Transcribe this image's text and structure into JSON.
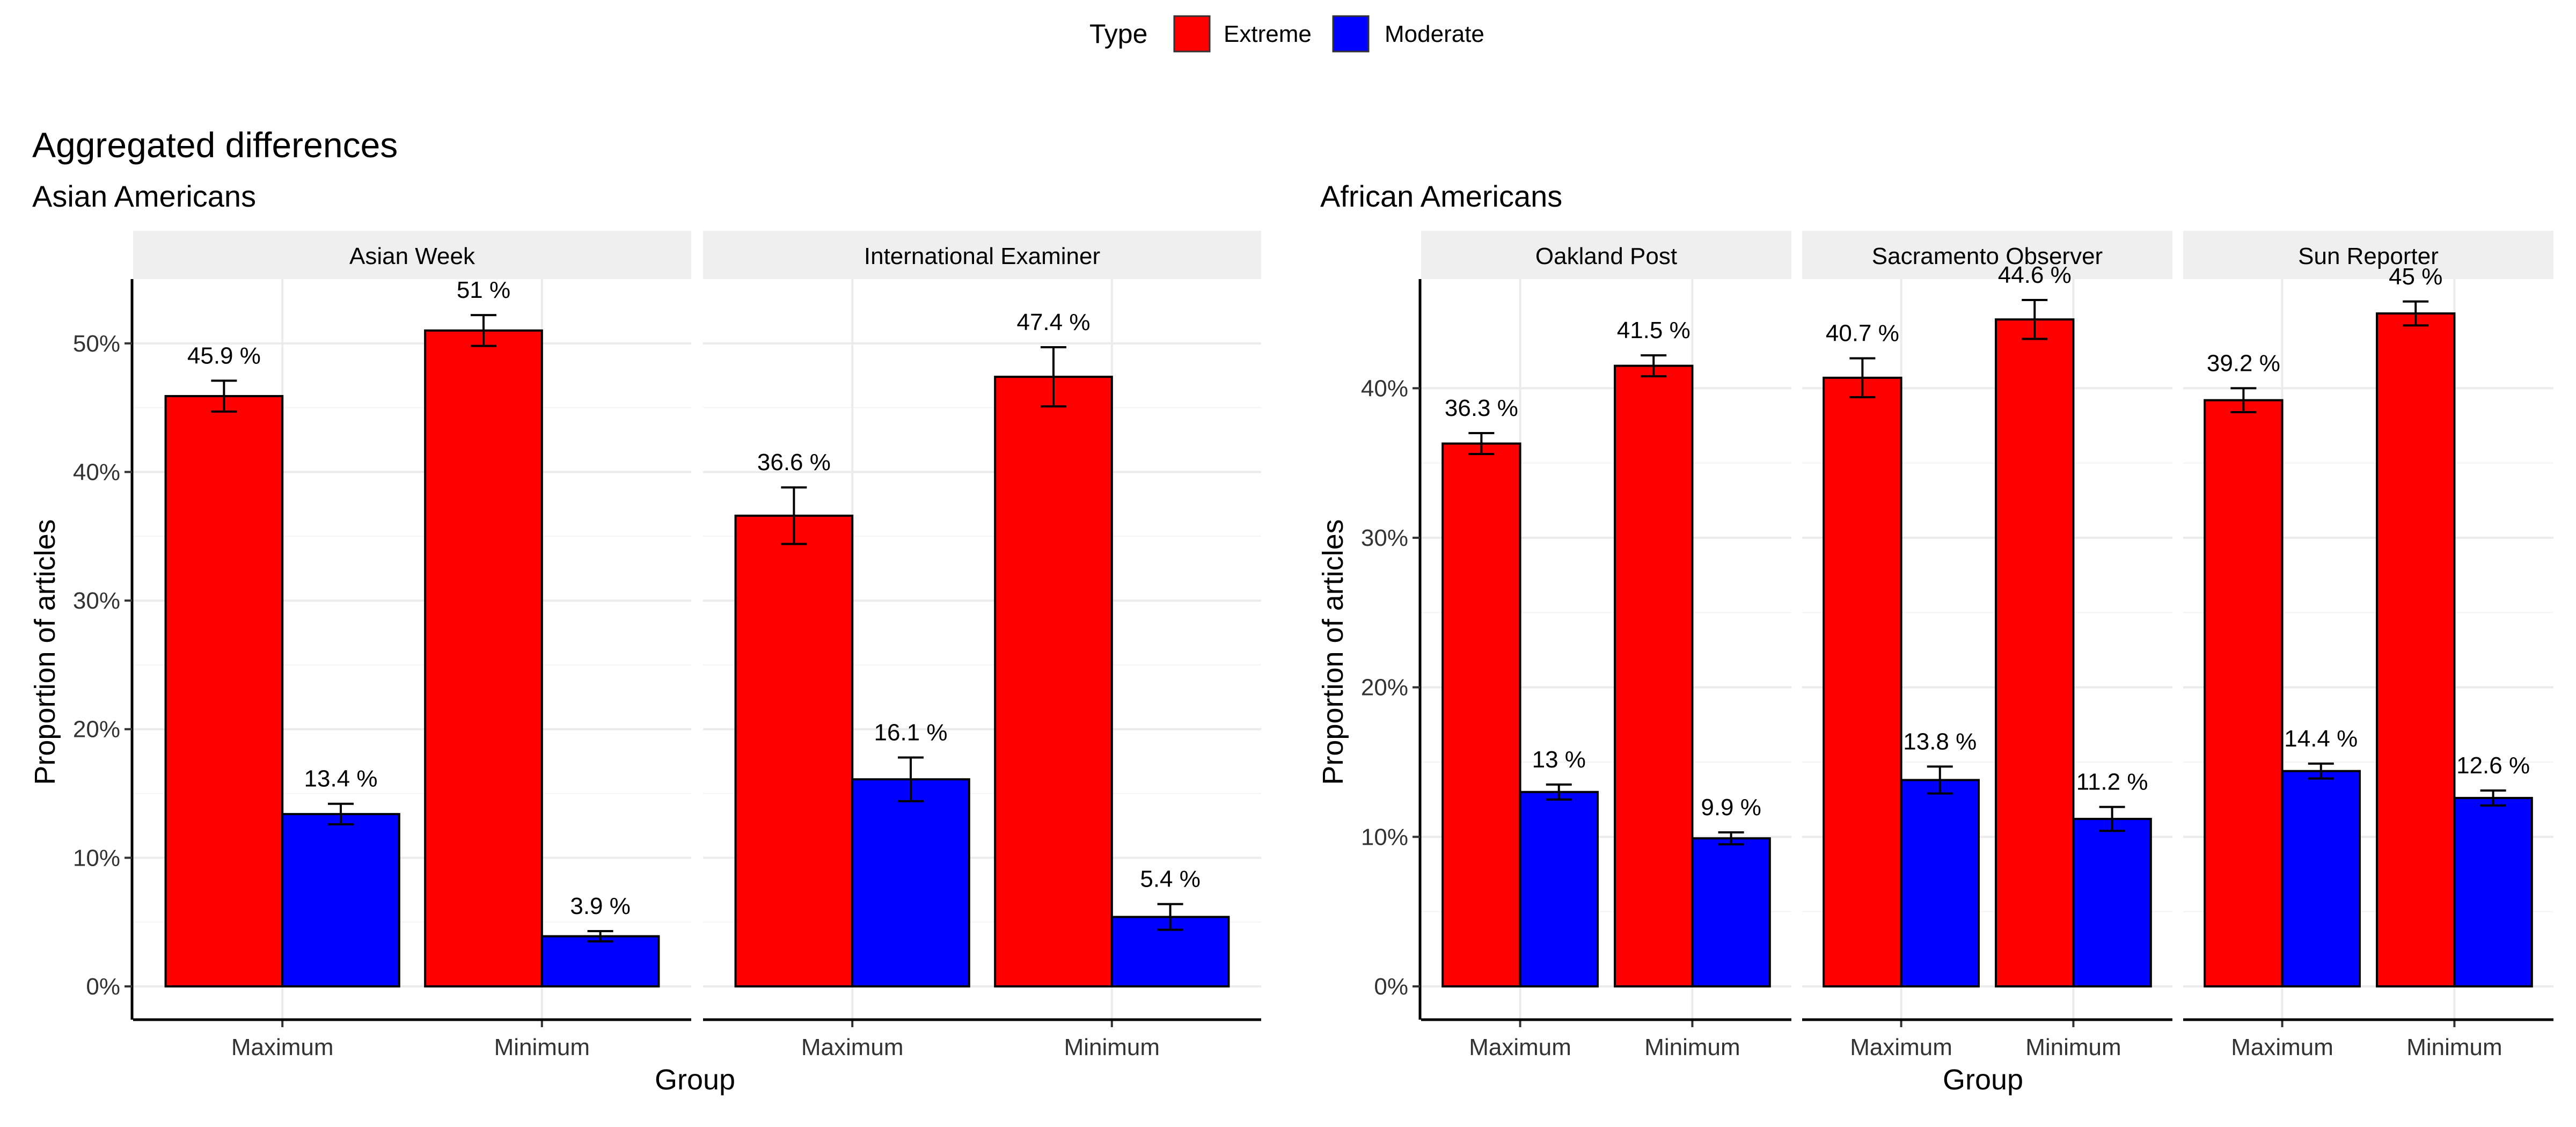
{
  "legend": {
    "title": "Type",
    "items": [
      {
        "label": "Extreme",
        "color": "#ff0000"
      },
      {
        "label": "Moderate",
        "color": "#0000ff"
      }
    ]
  },
  "figure_title": "Aggregated differences",
  "panels": [
    {
      "title": "Asian Americans",
      "ylabel": "Proportion of articles",
      "xlabel": ""
    },
    {
      "title": "African Americans",
      "ylabel": "Proportion of articles",
      "xlabel": ""
    }
  ],
  "shared_xlabel": "Group",
  "chart_data": [
    {
      "type": "bar",
      "title": "Asian Americans",
      "ylabel": "Proportion of articles",
      "xlabel": "Group",
      "ylim": [
        0,
        0.55
      ],
      "yticks": [
        "0%",
        "10%",
        "20%",
        "30%",
        "40%",
        "50%"
      ],
      "ytick_values": [
        0,
        0.1,
        0.2,
        0.3,
        0.4,
        0.5
      ],
      "categories": [
        "Maximum",
        "Minimum"
      ],
      "grid": true,
      "facets": [
        {
          "name": "Asian Week",
          "series": [
            {
              "name": "Extreme",
              "values": [
                0.459,
                0.51
              ],
              "err": [
                0.012,
                0.012
              ],
              "labels": [
                "45.9 %",
                "51 %"
              ]
            },
            {
              "name": "Moderate",
              "values": [
                0.134,
                0.039
              ],
              "err": [
                0.008,
                0.004
              ],
              "labels": [
                "13.4 %",
                "3.9 %"
              ]
            }
          ]
        },
        {
          "name": "International Examiner",
          "series": [
            {
              "name": "Extreme",
              "values": [
                0.366,
                0.474
              ],
              "err": [
                0.022,
                0.023
              ],
              "labels": [
                "36.6 %",
                "47.4 %"
              ]
            },
            {
              "name": "Moderate",
              "values": [
                0.161,
                0.054
              ],
              "err": [
                0.017,
                0.01
              ],
              "labels": [
                "16.1 %",
                "5.4 %"
              ]
            }
          ]
        }
      ]
    },
    {
      "type": "bar",
      "title": "African Americans",
      "ylabel": "Proportion of articles",
      "xlabel": "Group",
      "ylim": [
        0,
        0.473
      ],
      "yticks": [
        "0%",
        "10%",
        "20%",
        "30%",
        "40%"
      ],
      "ytick_values": [
        0,
        0.1,
        0.2,
        0.3,
        0.4
      ],
      "categories": [
        "Maximum",
        "Minimum"
      ],
      "grid": true,
      "facets": [
        {
          "name": "Oakland Post",
          "series": [
            {
              "name": "Extreme",
              "values": [
                0.363,
                0.415
              ],
              "err": [
                0.007,
                0.007
              ],
              "labels": [
                "36.3 %",
                "41.5 %"
              ]
            },
            {
              "name": "Moderate",
              "values": [
                0.13,
                0.099
              ],
              "err": [
                0.005,
                0.004
              ],
              "labels": [
                "13 %",
                "9.9 %"
              ]
            }
          ]
        },
        {
          "name": "Sacramento Observer",
          "series": [
            {
              "name": "Extreme",
              "values": [
                0.407,
                0.446
              ],
              "err": [
                0.013,
                0.013
              ],
              "labels": [
                "40.7 %",
                "44.6 %"
              ]
            },
            {
              "name": "Moderate",
              "values": [
                0.138,
                0.112
              ],
              "err": [
                0.009,
                0.008
              ],
              "labels": [
                "13.8 %",
                "11.2 %"
              ]
            }
          ]
        },
        {
          "name": "Sun Reporter",
          "series": [
            {
              "name": "Extreme",
              "values": [
                0.392,
                0.45
              ],
              "err": [
                0.008,
                0.008
              ],
              "labels": [
                "39.2 %",
                "45 %"
              ]
            },
            {
              "name": "Moderate",
              "values": [
                0.144,
                0.126
              ],
              "err": [
                0.005,
                0.005
              ],
              "labels": [
                "14.4 %",
                "12.6 %"
              ]
            }
          ]
        }
      ]
    }
  ]
}
